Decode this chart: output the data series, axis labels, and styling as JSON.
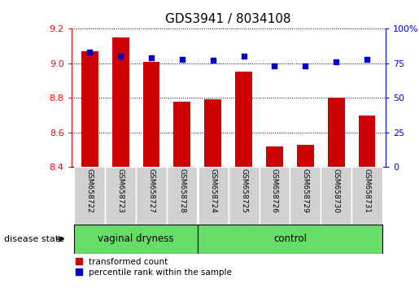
{
  "title": "GDS3941 / 8034108",
  "samples": [
    "GSM658722",
    "GSM658723",
    "GSM658727",
    "GSM658728",
    "GSM658724",
    "GSM658725",
    "GSM658726",
    "GSM658729",
    "GSM658730",
    "GSM658731"
  ],
  "red_values": [
    9.07,
    9.15,
    9.01,
    8.78,
    8.79,
    8.95,
    8.52,
    8.53,
    8.8,
    8.7
  ],
  "blue_values": [
    83,
    80,
    79,
    78,
    77,
    80,
    73,
    73,
    76,
    78
  ],
  "ylim_left": [
    8.4,
    9.2
  ],
  "ylim_right": [
    0,
    100
  ],
  "yticks_left": [
    8.4,
    8.6,
    8.8,
    9.0,
    9.2
  ],
  "yticks_right": [
    0,
    25,
    50,
    75,
    100
  ],
  "group1_label": "vaginal dryness",
  "group2_label": "control",
  "group1_count": 4,
  "group2_count": 6,
  "bar_color": "#cc0000",
  "dot_color": "#0000cc",
  "legend_items": [
    "transformed count",
    "percentile rank within the sample"
  ],
  "disease_state_label": "disease state",
  "sample_box_color": "#d0d0d0",
  "group_bg_color": "#66dd66",
  "title_fontsize": 11,
  "tick_fontsize": 8,
  "bar_width": 0.55
}
